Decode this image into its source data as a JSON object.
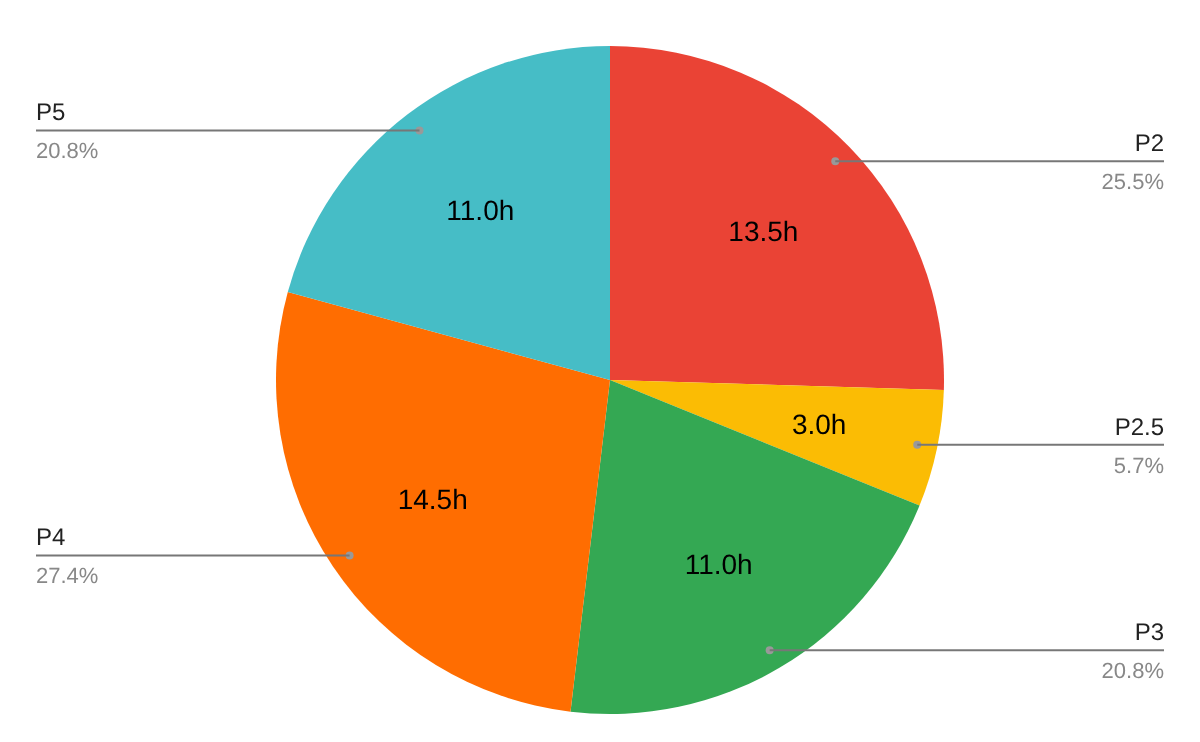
{
  "chart_data": {
    "type": "pie",
    "categories": [
      "P2",
      "P2.5",
      "P3",
      "P4",
      "P5"
    ],
    "values": [
      13.5,
      3.0,
      11.0,
      14.5,
      11.0
    ],
    "colors": [
      "#ea4335",
      "#fbbc04",
      "#34a853",
      "#ff6d01",
      "#46bdc6"
    ],
    "value_labels": [
      "13.5h",
      "3.0h",
      "11.0h",
      "14.5h",
      "11.0h"
    ],
    "annotations": [
      {
        "text": "25.5%",
        "x": "P2"
      },
      {
        "text": "5.7%",
        "x": "P2.5"
      },
      {
        "text": "20.8%",
        "x": "P3"
      },
      {
        "text": "27.4%",
        "x": "P4"
      },
      {
        "text": "20.8%",
        "x": "P5"
      }
    ],
    "legend": false
  }
}
